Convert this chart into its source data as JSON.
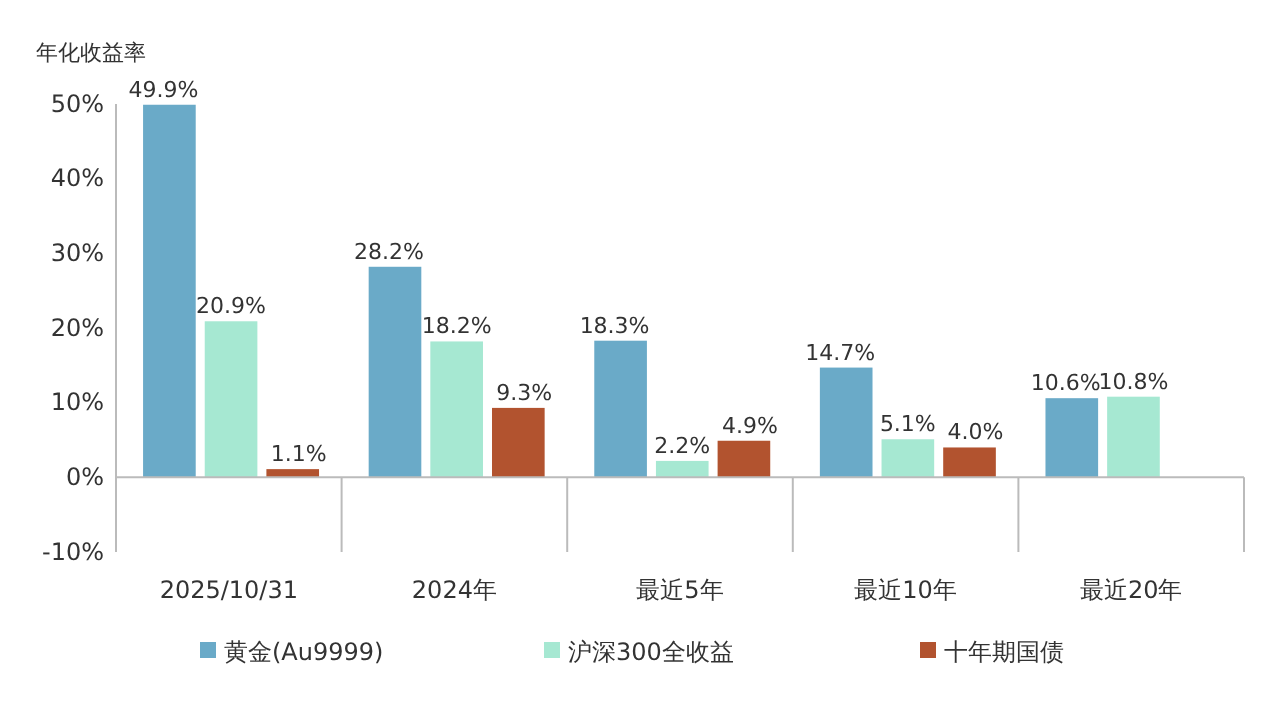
{
  "chart_data": {
    "type": "bar",
    "ylabel": "年化收益率",
    "categories": [
      "2025/10/31",
      "2024年",
      "最近5年",
      "最近10年",
      "最近20年"
    ],
    "series": [
      {
        "name": "黄金(Au9999)",
        "color": "#6aaac8",
        "values": [
          49.9,
          28.2,
          18.3,
          14.7,
          10.6
        ],
        "value_labels": [
          "49.9%",
          "28.2%",
          "18.3%",
          "14.7%",
          "10.6%"
        ]
      },
      {
        "name": "沪深300全收益",
        "color": "#a6e8d2",
        "values": [
          20.9,
          18.2,
          2.2,
          5.1,
          10.8
        ],
        "value_labels": [
          "20.9%",
          "18.2%",
          "2.2%",
          "5.1%",
          "10.8%"
        ]
      },
      {
        "name": "十年期国债",
        "color": "#b2532f",
        "values": [
          1.1,
          9.3,
          4.9,
          4.0,
          null
        ],
        "value_labels": [
          "1.1%",
          "9.3%",
          "4.9%",
          "4.0%",
          null
        ]
      }
    ],
    "ylim": [
      -10,
      50
    ],
    "yticks": [
      {
        "value": -10,
        "label": "-10%"
      },
      {
        "value": 0,
        "label": "0%"
      },
      {
        "value": 10,
        "label": "10%"
      },
      {
        "value": 20,
        "label": "20%"
      },
      {
        "value": 30,
        "label": "30%"
      },
      {
        "value": 40,
        "label": "40%"
      },
      {
        "value": 50,
        "label": "50%"
      }
    ],
    "legend": "bottom"
  }
}
